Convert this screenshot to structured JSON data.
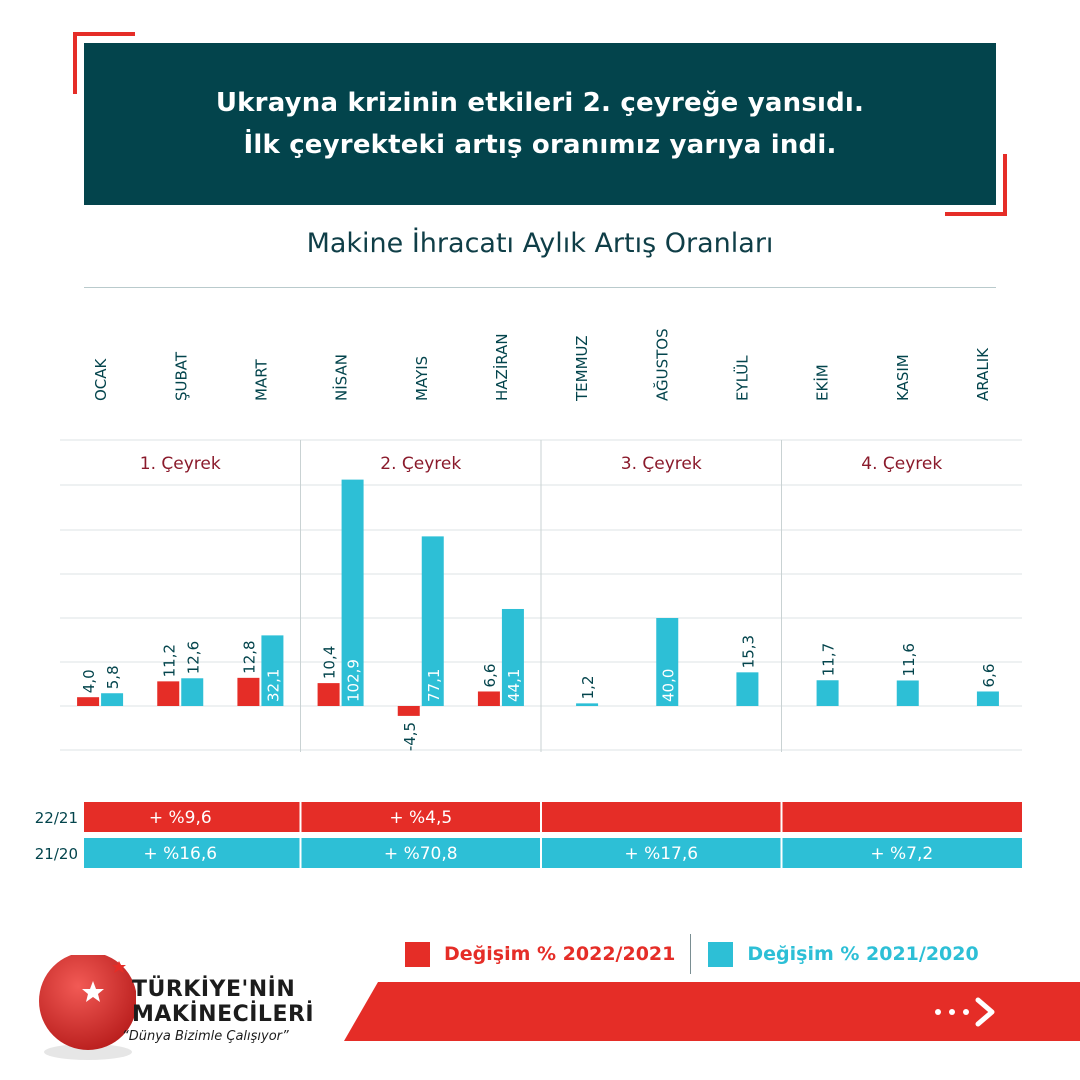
{
  "header": {
    "line1": "Ukrayna krizinin etkileri 2. çeyreğe yansıdı.",
    "line2": "İlk çeyrekteki artış oranımız yarıya indi."
  },
  "colors": {
    "dark_teal": "#03444c",
    "red": "#e52d27",
    "cyan": "#2dbfd6",
    "quarter_label": "#8a1a2b"
  },
  "chart_data": {
    "type": "bar",
    "title": "Makine İhracatı Aylık Artış Oranları",
    "categories": [
      "OCAK",
      "ŞUBAT",
      "MART",
      "NİSAN",
      "MAYIS",
      "HAZİRAN",
      "TEMMUZ",
      "AĞUSTOS",
      "EYLÜL",
      "EKİM",
      "KASIM",
      "ARALIK"
    ],
    "series": [
      {
        "name": "Değişim % 2022/2021",
        "values": [
          4.0,
          11.2,
          12.8,
          10.4,
          -4.5,
          6.6,
          null,
          null,
          null,
          null,
          null,
          null
        ],
        "labels": [
          "4,0",
          "11,2",
          "12,8",
          "10,4",
          "-4,5",
          "6,6",
          "",
          "",
          "",
          "",
          "",
          ""
        ]
      },
      {
        "name": "Değişim % 2021/2020",
        "values": [
          5.8,
          12.6,
          32.1,
          102.9,
          77.1,
          44.1,
          1.2,
          40.0,
          15.3,
          11.7,
          11.6,
          6.6
        ],
        "labels": [
          "5,8",
          "12,6",
          "32,1",
          "102,9",
          "77,1",
          "44,1",
          "1,2",
          "40,0",
          "15,3",
          "11,7",
          "11,6",
          "6,6"
        ]
      }
    ],
    "quarters": [
      "1. Çeyrek",
      "2. Çeyrek",
      "3. Çeyrek",
      "4. Çeyrek"
    ],
    "ylim": [
      -20,
      120
    ],
    "grid": true,
    "quarterly_summary": [
      {
        "label": "22/21",
        "values": [
          "+ %9,6",
          "+ %4,5",
          "",
          ""
        ]
      },
      {
        "label": "21/20",
        "values": [
          "+ %16,6",
          "+ %70,8",
          "+ %17,6",
          "+ %7,2"
        ]
      }
    ]
  },
  "legend": {
    "items": [
      {
        "label": "Değişim % 2022/2021"
      },
      {
        "label": "Değişim % 2021/2020"
      }
    ]
  },
  "logo": {
    "title_line1": "TÜRKİYE'NİN",
    "title_line2": "MAKİNECİLERİ",
    "slogan": "“Dünya Bizimle Çalışıyor”"
  },
  "icons": {
    "next": "arrow-right-icon",
    "logo_mark": "star-crescent-icon"
  }
}
